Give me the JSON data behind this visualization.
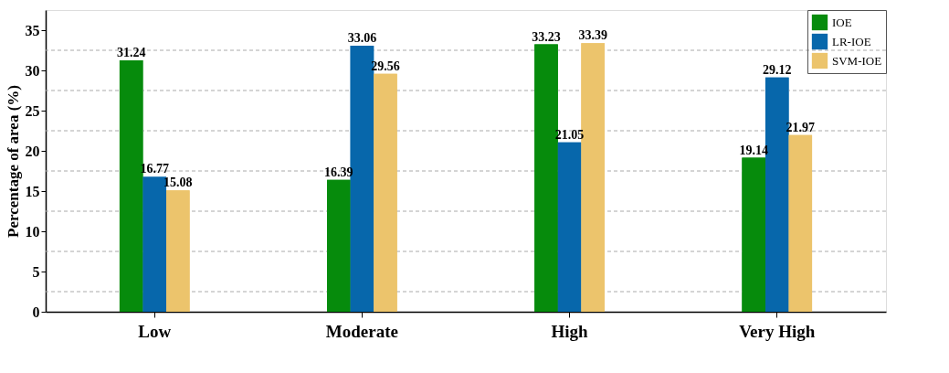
{
  "chart_data": {
    "type": "bar",
    "ylabel": "Percentage of area (%)",
    "categories": [
      "Low",
      "Moderate",
      "High",
      "Very High"
    ],
    "series": [
      {
        "name": "IOE",
        "color": "#068b0c",
        "values": [
          31.24,
          16.39,
          33.23,
          19.14
        ]
      },
      {
        "name": "LR-IOE",
        "color": "#0767ab",
        "values": [
          16.77,
          33.06,
          21.05,
          29.12
        ]
      },
      {
        "name": "SVM-IOE",
        "color": "#ecc46c",
        "values": [
          15.08,
          29.56,
          33.39,
          21.97
        ]
      }
    ],
    "ylim": [
      0,
      37.5
    ],
    "yticks": [
      0,
      {
        "value": 2.5,
        "label": null
      },
      5,
      {
        "value": 7.5,
        "label": null
      },
      10,
      {
        "value": 12.5,
        "label": null
      },
      15,
      {
        "value": 17.5,
        "label": null
      },
      20,
      {
        "value": 22.5,
        "label": null
      },
      25,
      {
        "value": 27.5,
        "label": null
      },
      30,
      {
        "value": 32.5,
        "label": null
      },
      35
    ],
    "grid": "y",
    "legend": "top right",
    "data_labels": true
  }
}
